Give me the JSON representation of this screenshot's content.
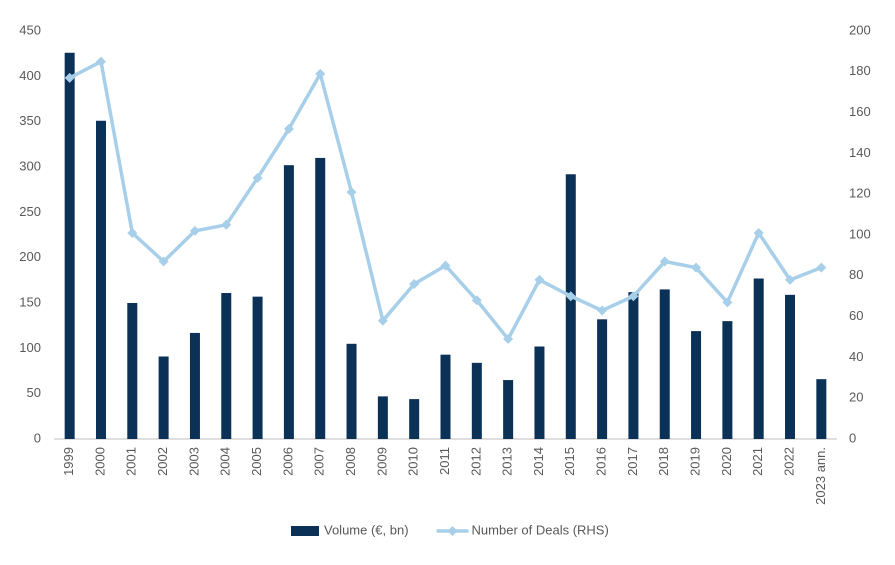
{
  "chart_data": {
    "type": "bar_line",
    "categories": [
      "1999",
      "2000",
      "2001",
      "2002",
      "2003",
      "2004",
      "2005",
      "2006",
      "2007",
      "2008",
      "2009",
      "2010",
      "2011",
      "2012",
      "2013",
      "2014",
      "2015",
      "2016",
      "2017",
      "2018",
      "2019",
      "2020",
      "2021",
      "2022",
      "2023 ann."
    ],
    "series": [
      {
        "name": "Volume (€, bn)",
        "type": "bar",
        "color": "#0b3157",
        "values": [
          426,
          351,
          150,
          91,
          117,
          161,
          157,
          302,
          310,
          105,
          47,
          44,
          93,
          84,
          65,
          102,
          292,
          132,
          162,
          165,
          119,
          130,
          177,
          159,
          66
        ]
      },
      {
        "name": "Number of Deals (RHS)",
        "type": "line",
        "axis": "y2",
        "color": "#a8cfe9",
        "values": [
          177,
          185,
          101,
          87,
          102,
          105,
          128,
          152,
          179,
          121,
          58,
          76,
          85,
          68,
          49,
          78,
          70,
          63,
          70,
          87,
          84,
          67,
          101,
          78,
          84
        ]
      }
    ],
    "ylim": [
      0,
      450
    ],
    "yticks": [
      0,
      50,
      100,
      150,
      200,
      250,
      300,
      350,
      400,
      450
    ],
    "y2lim": [
      0,
      200
    ],
    "y2ticks": [
      0,
      20,
      40,
      60,
      80,
      100,
      120,
      140,
      160,
      180,
      200
    ],
    "grid": false,
    "legend": "bottom"
  }
}
